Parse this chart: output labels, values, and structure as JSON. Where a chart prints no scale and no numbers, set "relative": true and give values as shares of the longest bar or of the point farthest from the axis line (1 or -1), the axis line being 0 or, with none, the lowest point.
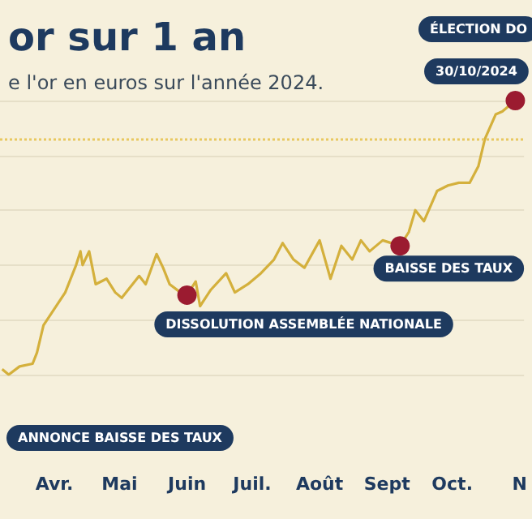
{
  "chart_data": {
    "type": "line",
    "title": "or sur 1 an",
    "subtitle": "e l'or en euros sur l'année 2024.",
    "relative": true,
    "x": [
      "2024-03-08",
      "2024-03-11",
      "2024-03-16",
      "2024-03-22",
      "2024-03-24",
      "2024-03-27",
      "2024-04-01",
      "2024-04-06",
      "2024-04-11",
      "2024-04-13",
      "2024-04-14",
      "2024-04-17",
      "2024-04-20",
      "2024-04-25",
      "2024-04-29",
      "2024-05-02",
      "2024-05-10",
      "2024-05-13",
      "2024-05-18",
      "2024-05-21",
      "2024-05-24",
      "2024-05-29",
      "2024-06-01",
      "2024-06-05",
      "2024-06-07",
      "2024-06-12",
      "2024-06-19",
      "2024-06-23",
      "2024-06-29",
      "2024-07-05",
      "2024-07-11",
      "2024-07-15",
      "2024-07-20",
      "2024-07-25",
      "2024-08-01",
      "2024-08-06",
      "2024-08-11",
      "2024-08-16",
      "2024-08-20",
      "2024-08-24",
      "2024-08-30",
      "2024-09-07",
      "2024-09-11",
      "2024-09-14",
      "2024-09-18",
      "2024-09-24",
      "2024-09-29",
      "2024-10-04",
      "2024-10-09",
      "2024-10-13",
      "2024-10-16",
      "2024-10-21",
      "2024-10-24",
      "2024-10-30"
    ],
    "series": [
      {
        "color": "#d4b03c",
        "values": [
          0.02,
          0,
          0.03,
          0.04,
          0.08,
          0.18,
          0.24,
          0.3,
          0.4,
          0.45,
          0.4,
          0.45,
          0.33,
          0.35,
          0.3,
          0.28,
          0.36,
          0.33,
          0.44,
          0.39,
          0.33,
          0.3,
          0.29,
          0.34,
          0.25,
          0.31,
          0.37,
          0.3,
          0.33,
          0.37,
          0.42,
          0.48,
          0.42,
          0.39,
          0.49,
          0.35,
          0.47,
          0.42,
          0.49,
          0.45,
          0.49,
          0.47,
          0.52,
          0.6,
          0.56,
          0.67,
          0.69,
          0.7,
          0.7,
          0.76,
          0.86,
          0.95,
          0.96,
          1
        ]
      }
    ],
    "xlim": [
      "2024-03-07",
      "2024-11-03"
    ],
    "xticks": [
      {
        "value": "2024-04-01",
        "label": "Avr."
      },
      {
        "value": "2024-05-01",
        "label": "Mai"
      },
      {
        "value": "2024-06-01",
        "label": "Juin"
      },
      {
        "value": "2024-07-01",
        "label": "Juil."
      },
      {
        "value": "2024-08-01",
        "label": "Août"
      },
      {
        "value": "2024-09-01",
        "label": "Sept"
      },
      {
        "value": "2024-10-01",
        "label": "Oct."
      },
      {
        "value": "2024-11-01",
        "label": "N"
      }
    ],
    "grid": "y",
    "marker": "none",
    "line_style": "solid",
    "ref_lines": [
      {
        "axis": "y",
        "value": 0.86,
        "color": "#e8c860",
        "line_style": "dotted"
      }
    ],
    "annotations": [
      {
        "text": "DISSOLUTION ASSEMBLÉE NATIONALE",
        "x": "2024-06-01",
        "y": 0.29
      },
      {
        "text": "BAISSE DES TAUX",
        "x": "2024-09-07",
        "y": 0.47
      },
      {
        "text": "30/10/2024",
        "x": "2024-10-30",
        "y": 1
      },
      "ANNONCE BAISSE DES TAUX",
      "ÉLECTION DO"
    ]
  }
}
